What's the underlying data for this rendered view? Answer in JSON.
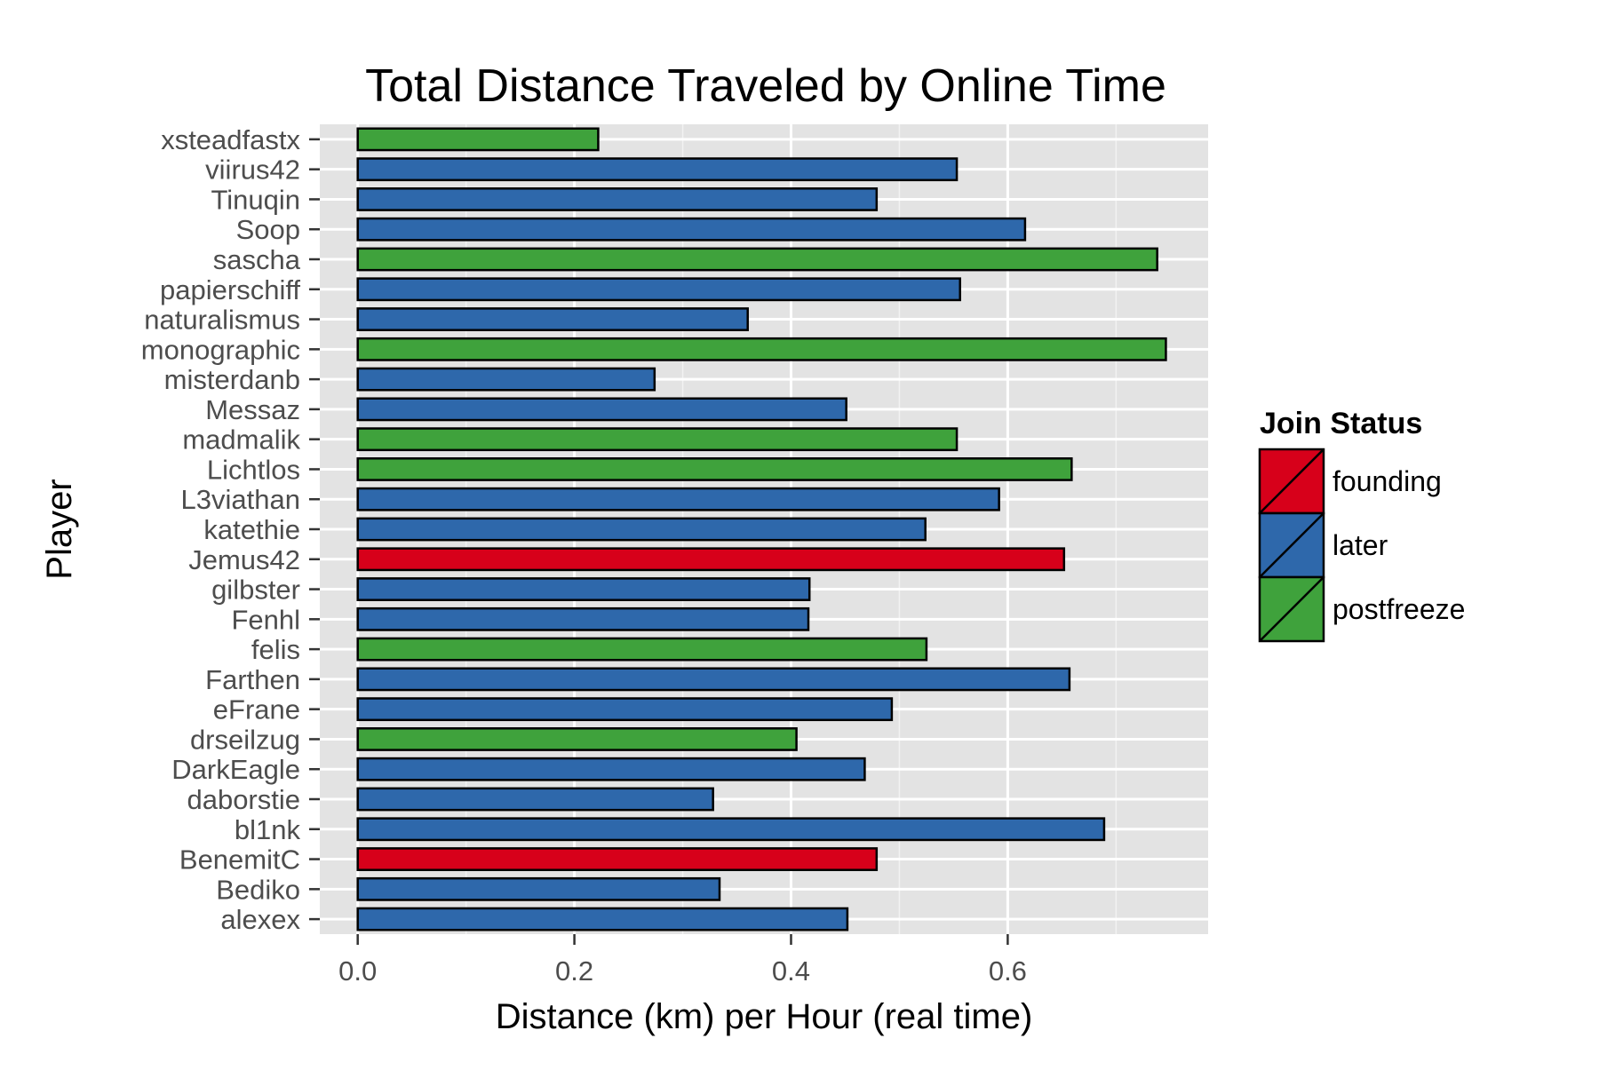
{
  "chart_data": {
    "type": "bar",
    "orientation": "horizontal",
    "title": "Total Distance Traveled by Online Time",
    "xlabel": "Distance (km) per Hour (real time)",
    "ylabel": "Player",
    "xlim": [
      -0.035,
      0.785
    ],
    "xticks": [
      0.0,
      0.2,
      0.4,
      0.6
    ],
    "xtick_labels": [
      "0.0",
      "0.2",
      "0.4",
      "0.6"
    ],
    "grid": true,
    "legend": {
      "title": "Join Status",
      "position": "right",
      "entries": [
        {
          "key": "founding",
          "label": "founding",
          "color": "#d7001a"
        },
        {
          "key": "later",
          "label": "later",
          "color": "#2e68ab"
        },
        {
          "key": "postfreeze",
          "label": "postfreeze",
          "color": "#3fa23c"
        }
      ]
    },
    "categories": [
      "xsteadfastx",
      "viirus42",
      "Tinuqin",
      "Soop",
      "sascha",
      "papierschiff",
      "naturalismus",
      "monographic",
      "misterdanb",
      "Messaz",
      "madmalik",
      "Lichtlos",
      "L3viathan",
      "katethie",
      "Jemus42",
      "gilbster",
      "Fenhl",
      "felis",
      "Farthen",
      "eFrane",
      "drseilzug",
      "DarkEagle",
      "daborstie",
      "bl1nk",
      "BenemitC",
      "Bediko",
      "alexex"
    ],
    "values": [
      0.222,
      0.553,
      0.479,
      0.616,
      0.738,
      0.556,
      0.36,
      0.746,
      0.274,
      0.451,
      0.553,
      0.659,
      0.592,
      0.524,
      0.652,
      0.417,
      0.416,
      0.525,
      0.657,
      0.493,
      0.405,
      0.468,
      0.328,
      0.689,
      0.479,
      0.334,
      0.452
    ],
    "groups": [
      "postfreeze",
      "later",
      "later",
      "later",
      "postfreeze",
      "later",
      "later",
      "postfreeze",
      "later",
      "later",
      "postfreeze",
      "postfreeze",
      "later",
      "later",
      "founding",
      "later",
      "later",
      "postfreeze",
      "later",
      "later",
      "postfreeze",
      "later",
      "later",
      "later",
      "founding",
      "later",
      "later"
    ]
  }
}
